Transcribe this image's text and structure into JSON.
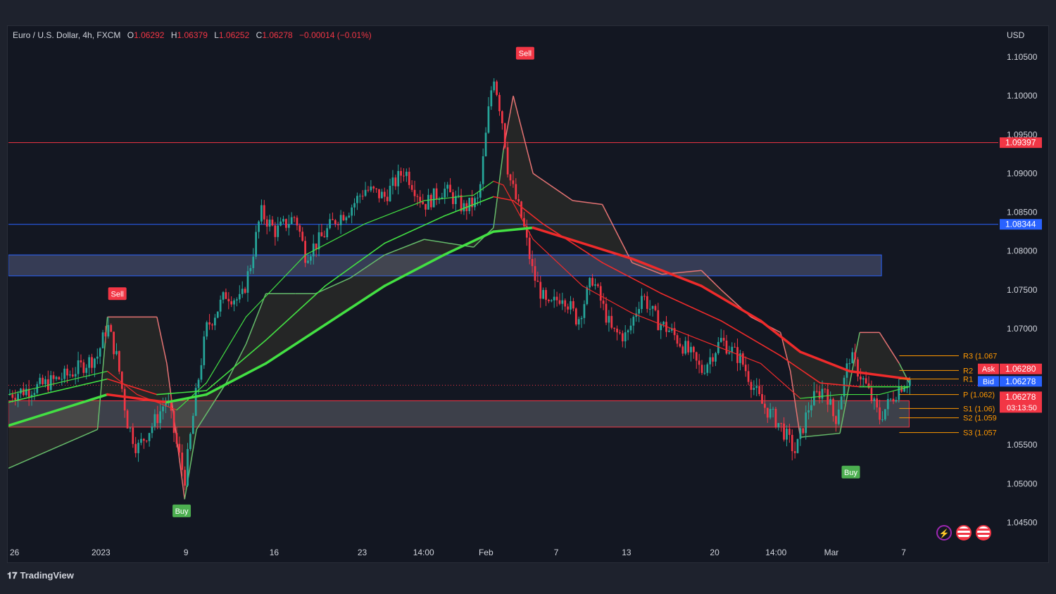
{
  "legend": {
    "symbol": "Euro / U.S. Dollar, 4h, FXCM",
    "o_label": "O",
    "o_value": "1.06292",
    "h_label": "H",
    "h_value": "1.06379",
    "l_label": "L",
    "l_value": "1.06252",
    "c_label": "C",
    "c_value": "1.06278",
    "change": "−0.00014 (−0.01%)"
  },
  "currency": "USD",
  "footer": {
    "brand": "TradingView"
  },
  "colors": {
    "up": "#26a69a",
    "down": "#f23645",
    "buy": "#4caf50",
    "sell": "#f23645",
    "resistance": "#f23645",
    "support_blue": "#2962ff",
    "pivot": "#ff9800"
  },
  "chart_data": {
    "type": "candlestick",
    "ylim": [
      1.0425,
      1.109
    ],
    "y_ticks": [
      1.105,
      1.1,
      1.095,
      1.09,
      1.085,
      1.08,
      1.075,
      1.07,
      1.065,
      1.06,
      1.055,
      1.05,
      1.045
    ],
    "y_tick_labels": [
      "1.10500",
      "1.10000",
      "1.09500",
      "1.09000",
      "1.08500",
      "1.08000",
      "1.07500",
      "1.07000",
      "",
      "1.06000",
      "1.05500",
      "1.05000",
      "1.04500"
    ],
    "x_ticks": [
      {
        "label": "26",
        "x": 0.0
      },
      {
        "label": "2023",
        "x": 0.092
      },
      {
        "label": "9",
        "x": 0.178
      },
      {
        "label": "16",
        "x": 0.267
      },
      {
        "label": "23",
        "x": 0.356
      },
      {
        "label": "14:00",
        "x": 0.418
      },
      {
        "label": "Feb",
        "x": 0.481
      },
      {
        "label": "7",
        "x": 0.552
      },
      {
        "label": "13",
        "x": 0.623
      },
      {
        "label": "20",
        "x": 0.712
      },
      {
        "label": "14:00",
        "x": 0.774
      },
      {
        "label": "Mar",
        "x": 0.83
      },
      {
        "label": "7",
        "x": 0.903
      }
    ],
    "price_path": [
      [
        0.0,
        1.0615
      ],
      [
        0.03,
        1.0625
      ],
      [
        0.06,
        1.064
      ],
      [
        0.09,
        1.0665
      ],
      [
        0.1,
        1.0705
      ],
      [
        0.11,
        1.066
      ],
      [
        0.12,
        1.058
      ],
      [
        0.13,
        1.0545
      ],
      [
        0.15,
        1.0585
      ],
      [
        0.16,
        1.061
      ],
      [
        0.17,
        1.055
      ],
      [
        0.178,
        1.0505
      ],
      [
        0.19,
        1.062
      ],
      [
        0.2,
        1.07
      ],
      [
        0.22,
        1.0745
      ],
      [
        0.235,
        1.0735
      ],
      [
        0.245,
        1.0785
      ],
      [
        0.255,
        1.085
      ],
      [
        0.27,
        1.0825
      ],
      [
        0.29,
        1.0845
      ],
      [
        0.3,
        1.0795
      ],
      [
        0.315,
        1.0815
      ],
      [
        0.33,
        1.084
      ],
      [
        0.345,
        1.0855
      ],
      [
        0.36,
        1.088
      ],
      [
        0.38,
        1.087
      ],
      [
        0.4,
        1.0905
      ],
      [
        0.42,
        1.086
      ],
      [
        0.44,
        1.088
      ],
      [
        0.46,
        1.0855
      ],
      [
        0.475,
        1.0865
      ],
      [
        0.485,
        1.098
      ],
      [
        0.49,
        1.103
      ],
      [
        0.5,
        1.096
      ],
      [
        0.505,
        1.09
      ],
      [
        0.52,
        1.0835
      ],
      [
        0.53,
        1.077
      ],
      [
        0.545,
        1.0725
      ],
      [
        0.56,
        1.0745
      ],
      [
        0.575,
        1.071
      ],
      [
        0.59,
        1.0765
      ],
      [
        0.61,
        1.0695
      ],
      [
        0.625,
        1.069
      ],
      [
        0.64,
        1.0745
      ],
      [
        0.655,
        1.071
      ],
      [
        0.67,
        1.0695
      ],
      [
        0.69,
        1.0665
      ],
      [
        0.7,
        1.0645
      ],
      [
        0.72,
        1.0685
      ],
      [
        0.74,
        1.066
      ],
      [
        0.76,
        1.0605
      ],
      [
        0.78,
        1.0575
      ],
      [
        0.795,
        1.054
      ],
      [
        0.81,
        1.0605
      ],
      [
        0.825,
        1.0625
      ],
      [
        0.835,
        1.058
      ],
      [
        0.85,
        1.0665
      ],
      [
        0.865,
        1.063
      ],
      [
        0.88,
        1.0585
      ],
      [
        0.9,
        1.0625
      ],
      [
        0.91,
        1.0635
      ]
    ],
    "ema_fast": [
      [
        0.0,
        1.0615
      ],
      [
        0.1,
        1.0645
      ],
      [
        0.13,
        1.0615
      ],
      [
        0.17,
        1.0595
      ],
      [
        0.2,
        1.063
      ],
      [
        0.24,
        1.0715
      ],
      [
        0.3,
        1.0795
      ],
      [
        0.36,
        1.0835
      ],
      [
        0.42,
        1.0865
      ],
      [
        0.47,
        1.0872
      ],
      [
        0.49,
        1.089
      ],
      [
        0.5,
        1.0885
      ],
      [
        0.53,
        1.0815
      ],
      [
        0.58,
        1.0755
      ],
      [
        0.63,
        1.072
      ],
      [
        0.7,
        1.0685
      ],
      [
        0.76,
        1.0655
      ],
      [
        0.8,
        1.061
      ],
      [
        0.84,
        1.0615
      ],
      [
        0.88,
        1.0615
      ],
      [
        0.91,
        1.0625
      ]
    ],
    "ema_mid": [
      [
        0.0,
        1.0605
      ],
      [
        0.1,
        1.0635
      ],
      [
        0.15,
        1.0615
      ],
      [
        0.2,
        1.062
      ],
      [
        0.26,
        1.0685
      ],
      [
        0.32,
        1.0755
      ],
      [
        0.38,
        1.081
      ],
      [
        0.44,
        1.0845
      ],
      [
        0.49,
        1.087
      ],
      [
        0.51,
        1.0865
      ],
      [
        0.54,
        1.0835
      ],
      [
        0.6,
        1.0785
      ],
      [
        0.66,
        1.0745
      ],
      [
        0.72,
        1.071
      ],
      [
        0.78,
        1.0665
      ],
      [
        0.82,
        1.063
      ],
      [
        0.86,
        1.0625
      ],
      [
        0.91,
        1.0625
      ]
    ],
    "ema_slow": [
      [
        0.0,
        1.0575
      ],
      [
        0.1,
        1.0615
      ],
      [
        0.16,
        1.0605
      ],
      [
        0.2,
        1.0615
      ],
      [
        0.26,
        1.0655
      ],
      [
        0.32,
        1.0705
      ],
      [
        0.38,
        1.0755
      ],
      [
        0.44,
        1.0795
      ],
      [
        0.49,
        1.0825
      ],
      [
        0.53,
        1.083
      ],
      [
        0.58,
        1.081
      ],
      [
        0.63,
        1.079
      ],
      [
        0.7,
        1.0755
      ],
      [
        0.76,
        1.071
      ],
      [
        0.8,
        1.067
      ],
      [
        0.85,
        1.0645
      ],
      [
        0.91,
        1.0635
      ]
    ],
    "trail_stop": [
      [
        0.0,
        1.052
      ],
      [
        0.09,
        1.057
      ],
      [
        0.1,
        1.0715
      ],
      [
        0.15,
        1.0715
      ],
      [
        0.16,
        1.0655
      ],
      [
        0.178,
        1.048
      ],
      [
        0.19,
        1.057
      ],
      [
        0.22,
        1.063
      ],
      [
        0.24,
        1.068
      ],
      [
        0.26,
        1.0745
      ],
      [
        0.29,
        1.0745
      ],
      [
        0.31,
        1.0745
      ],
      [
        0.345,
        1.0765
      ],
      [
        0.38,
        1.0795
      ],
      [
        0.42,
        1.0815
      ],
      [
        0.47,
        1.0805
      ],
      [
        0.49,
        1.083
      ],
      [
        0.5,
        1.093
      ],
      [
        0.51,
        1.1
      ],
      [
        0.53,
        1.09
      ],
      [
        0.57,
        1.0865
      ],
      [
        0.6,
        1.086
      ],
      [
        0.63,
        1.0785
      ],
      [
        0.66,
        1.077
      ],
      [
        0.7,
        1.0775
      ],
      [
        0.72,
        1.075
      ],
      [
        0.75,
        1.0715
      ],
      [
        0.78,
        1.0695
      ],
      [
        0.79,
        1.0645
      ],
      [
        0.8,
        1.056
      ],
      [
        0.84,
        1.0565
      ],
      [
        0.86,
        1.0695
      ],
      [
        0.88,
        1.0695
      ],
      [
        0.9,
        1.0655
      ],
      [
        0.91,
        1.063
      ]
    ],
    "levels": [
      {
        "price": 1.09397,
        "label": "1.09397",
        "color": "#f23645"
      },
      {
        "price": 1.08344,
        "label": "1.08344",
        "color": "#2962ff"
      }
    ],
    "zones": [
      {
        "top": 1.0795,
        "bottom": 1.0768,
        "color": "#2962ff",
        "x_end": 0.882
      },
      {
        "top": 1.0607,
        "bottom": 1.0573,
        "color": "#f23645",
        "x_end": 0.91
      }
    ],
    "pivots": [
      {
        "label": "R3 (1.067",
        "price": 1.0665
      },
      {
        "label": "R2",
        "price": 1.0646
      },
      {
        "label": "R1",
        "price": 1.0635
      },
      {
        "label": "P (1.062)",
        "price": 1.0615
      },
      {
        "label": "S1 (1.06)",
        "price": 1.0597
      },
      {
        "label": "S2 (1.059",
        "price": 1.0585
      },
      {
        "label": "S3 (1.057",
        "price": 1.0566
      }
    ],
    "signals": [
      {
        "type": "sell",
        "label": "Sell",
        "x": 0.11,
        "price": 1.0745
      },
      {
        "type": "buy",
        "label": "Buy",
        "x": 0.175,
        "price": 1.0465
      },
      {
        "type": "sell",
        "label": "Sell",
        "x": 0.522,
        "price": 1.1055
      },
      {
        "type": "buy",
        "label": "Buy",
        "x": 0.851,
        "price": 1.0515
      }
    ],
    "price_badges": [
      {
        "label": "1.09397",
        "price": 1.09397,
        "color": "#f23645"
      },
      {
        "label": "1.08344",
        "price": 1.08344,
        "color": "#2962ff"
      },
      {
        "tag": "Ask",
        "label": "1.06280",
        "price": 1.0648,
        "color": "#f23645"
      },
      {
        "tag": "Bid",
        "label": "1.06278",
        "price": 1.0632,
        "color": "#2962ff"
      },
      {
        "label": "1.06278",
        "sub": "03:13:50",
        "price": 1.0612,
        "color": "#f23645"
      }
    ]
  }
}
